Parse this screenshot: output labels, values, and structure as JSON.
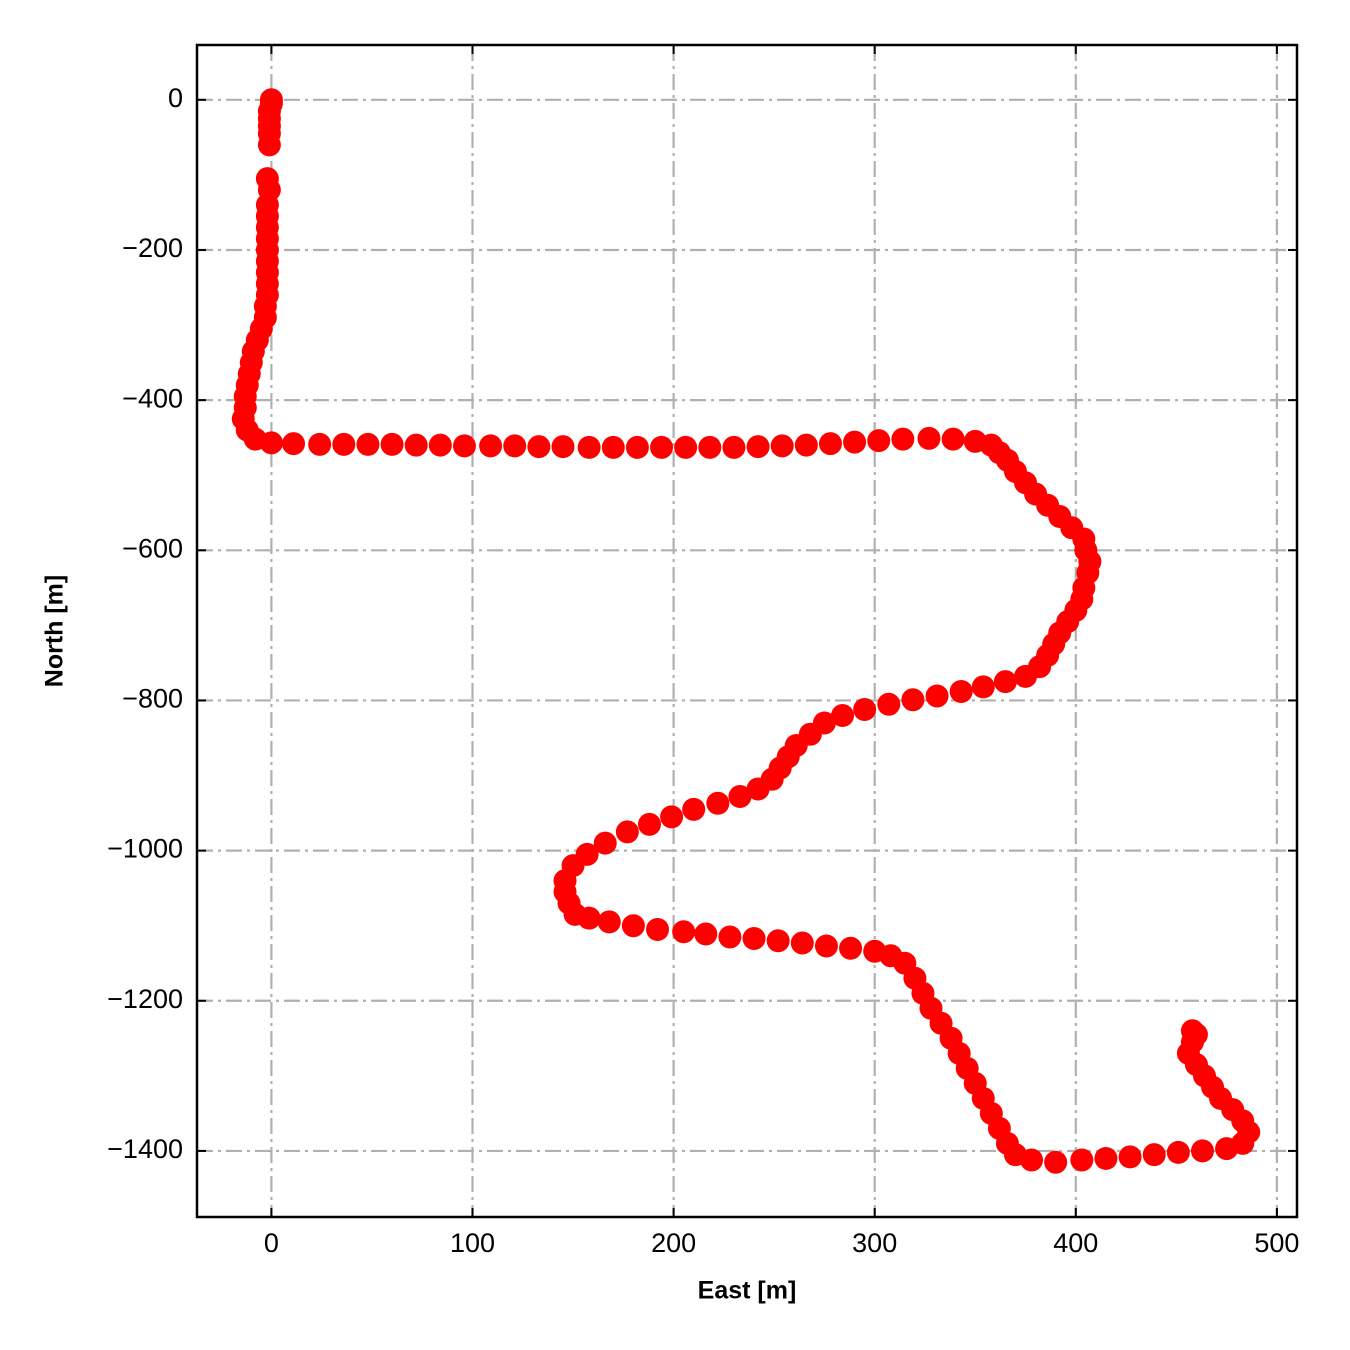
{
  "chart_data": {
    "type": "scatter",
    "x_label": "East [m]",
    "y_label": "North [m]",
    "color": "#ff0000",
    "grid": true,
    "xlim": [
      -37,
      510
    ],
    "ylim": [
      -1488,
      73
    ],
    "xticks": [
      0,
      100,
      200,
      300,
      400,
      500
    ],
    "yticks": [
      0,
      {
        "value": -200,
        "label": "−200"
      },
      {
        "value": -400,
        "label": "−400"
      },
      {
        "value": -600,
        "label": "−600"
      },
      {
        "value": -800,
        "label": "−800"
      },
      {
        "value": -1000,
        "label": "−1000"
      },
      {
        "value": -1200,
        "label": "−1200"
      },
      {
        "value": -1400,
        "label": "−1400"
      }
    ],
    "x": [
      0,
      0,
      -1,
      -1,
      -1,
      -1,
      -1,
      -2,
      -1,
      -2,
      -2,
      -2,
      -2,
      -2,
      -2,
      -2,
      -2,
      -2,
      -3,
      -3,
      -5,
      -7,
      -9,
      -10,
      -11,
      -12,
      -13,
      -13,
      -14,
      -12,
      -8,
      0,
      11,
      24,
      36,
      48,
      60,
      72,
      84,
      96,
      109,
      121,
      133,
      145,
      158,
      170,
      182,
      194,
      206,
      218,
      230,
      242,
      254,
      266,
      278,
      290,
      302,
      314,
      327,
      339,
      350,
      358,
      362,
      366,
      370,
      375,
      380,
      386,
      392,
      398,
      404,
      405,
      407,
      406,
      404,
      403,
      400,
      396,
      392,
      389,
      386,
      382,
      375,
      365,
      354,
      343,
      331,
      319,
      307,
      295,
      284,
      275,
      268,
      261,
      257,
      253,
      249,
      242,
      233,
      222,
      210,
      199,
      188,
      177,
      166,
      157,
      150,
      146,
      146,
      148,
      151,
      158,
      168,
      180,
      192,
      205,
      216,
      228,
      240,
      252,
      264,
      276,
      288,
      300,
      308,
      315,
      320,
      324,
      328,
      333,
      338,
      342,
      346,
      350,
      354,
      358,
      362,
      366,
      370,
      378,
      390,
      403,
      415,
      427,
      439,
      451,
      463,
      475,
      483,
      486,
      483,
      478,
      472,
      468,
      464,
      460,
      456,
      458,
      460,
      458
    ],
    "values": [
      0,
      -5,
      -15,
      -25,
      -35,
      -45,
      -60,
      -105,
      -120,
      -140,
      -155,
      -170,
      -185,
      -200,
      -215,
      -230,
      -245,
      -260,
      -275,
      -290,
      -305,
      -320,
      -335,
      -350,
      -365,
      -380,
      -395,
      -410,
      -425,
      -440,
      -452,
      -457,
      -458,
      -459,
      -459,
      -459,
      -459,
      -460,
      -460,
      -461,
      -461,
      -461,
      -462,
      -462,
      -463,
      -463,
      -463,
      -463,
      -463,
      -463,
      -463,
      -462,
      -461,
      -460,
      -458,
      -456,
      -454,
      -452,
      -451,
      -452,
      -455,
      -460,
      -470,
      -480,
      -495,
      -510,
      -525,
      -540,
      -555,
      -570,
      -585,
      -600,
      -615,
      -630,
      -650,
      -665,
      -680,
      -695,
      -710,
      -725,
      -740,
      -755,
      -768,
      -775,
      -782,
      -788,
      -794,
      -799,
      -805,
      -812,
      -820,
      -830,
      -845,
      -860,
      -875,
      -890,
      -905,
      -918,
      -928,
      -937,
      -945,
      -955,
      -965,
      -975,
      -990,
      -1005,
      -1020,
      -1040,
      -1055,
      -1070,
      -1085,
      -1090,
      -1095,
      -1100,
      -1105,
      -1108,
      -1111,
      -1115,
      -1117,
      -1120,
      -1123,
      -1127,
      -1130,
      -1134,
      -1140,
      -1150,
      -1170,
      -1190,
      -1210,
      -1230,
      -1250,
      -1270,
      -1290,
      -1310,
      -1330,
      -1350,
      -1370,
      -1390,
      -1405,
      -1412,
      -1415,
      -1412,
      -1410,
      -1408,
      -1405,
      -1402,
      -1400,
      -1397,
      -1390,
      -1375,
      -1360,
      -1345,
      -1330,
      -1315,
      -1300,
      -1285,
      -1270,
      -1255,
      -1245,
      -1240
    ]
  }
}
